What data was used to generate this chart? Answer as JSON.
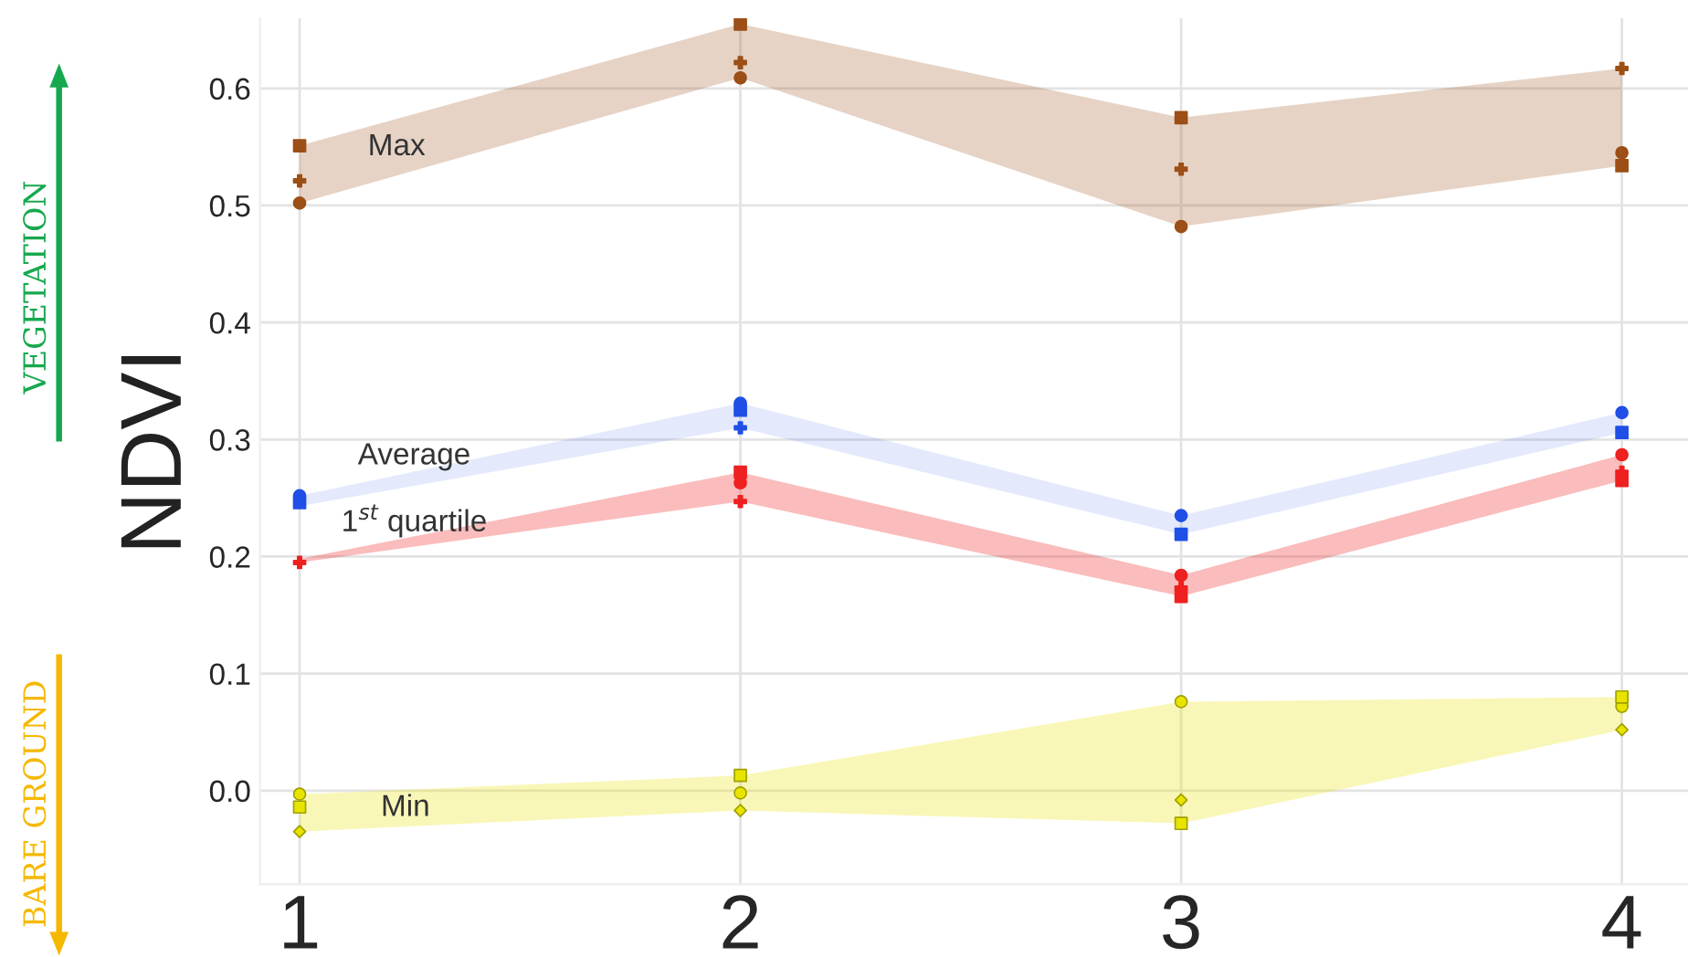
{
  "chart_data": {
    "type": "scatter",
    "ylabel": "NDVI",
    "categories": [
      "1",
      "2",
      "3",
      "4"
    ],
    "ylim": [
      -0.08,
      0.66
    ],
    "yticks": [
      {
        "value": 0,
        "label": "0.0"
      },
      {
        "value": 0.1,
        "label": "0.1"
      },
      {
        "value": 0.2,
        "label": "0.2"
      },
      {
        "value": 0.3,
        "label": "0.3"
      },
      {
        "value": 0.4,
        "label": "0.4"
      },
      {
        "value": 0.5,
        "label": "0.5"
      },
      {
        "value": 0.6,
        "label": "0.6"
      }
    ],
    "grid": true,
    "legend": false,
    "annotations": [
      "VEGETATION",
      "BARE GROUND"
    ],
    "series": [
      {
        "name": "Max",
        "marker": "square",
        "color": "#9c4f16",
        "values": [
          0.551,
          0.655,
          0.575,
          0.534
        ],
        "lower": [
          0.502,
          0.609,
          0.482,
          0.534
        ],
        "upper": [
          0.551,
          0.655,
          0.575,
          0.617
        ]
      },
      {
        "marker": "cross",
        "color": "#9c4f16",
        "values": [
          0.521,
          0.622,
          0.531,
          0.617
        ]
      },
      {
        "marker": "circle",
        "color": "#9c4f16",
        "values": [
          0.502,
          0.609,
          0.482,
          0.545
        ]
      },
      {
        "name": "Average",
        "marker": "circle",
        "color": "#1f4fe6",
        "values": [
          0.252,
          0.331,
          0.235,
          0.323
        ],
        "lower": [
          0.243,
          0.31,
          0.219,
          0.306
        ],
        "upper": [
          0.252,
          0.331,
          0.235,
          0.323
        ]
      },
      {
        "marker": "square",
        "color": "#1f4fe6",
        "values": [
          0.246,
          0.325,
          0.219,
          0.306
        ]
      },
      {
        "marker": "cross",
        "color": "#1f4fe6",
        "values": [
          null,
          0.31,
          null,
          null
        ]
      },
      {
        "marker": "circle",
        "color": "#ee2020",
        "values": [
          null,
          0.263,
          0.184,
          0.287
        ]
      },
      {
        "marker": "square",
        "color": "#ee2020",
        "values": [
          null,
          0.272,
          0.166,
          0.265
        ]
      },
      {
        "name": "1$^{st}$ quartile",
        "marker": "cross",
        "color": "#ee2020",
        "values": [
          0.195,
          0.247,
          0.173,
          0.272
        ],
        "lower": [
          0.195,
          0.247,
          0.166,
          0.265
        ],
        "upper": [
          0.198,
          0.272,
          0.184,
          0.287
        ]
      },
      {
        "name": "Min",
        "marker": "circle",
        "color": "#e8e400",
        "values": [
          -0.003,
          -0.002,
          0.076,
          0.072
        ],
        "lower": [
          -0.035,
          -0.017,
          -0.028,
          0.052
        ],
        "upper": [
          -0.003,
          0.013,
          0.076,
          0.08
        ]
      },
      {
        "marker": "square",
        "color": "#e8e400",
        "values": [
          -0.014,
          0.013,
          -0.028,
          0.08
        ]
      },
      {
        "marker": "diamond",
        "color": "#e8e400",
        "values": [
          -0.035,
          -0.017,
          -0.008,
          0.052
        ]
      }
    ]
  }
}
